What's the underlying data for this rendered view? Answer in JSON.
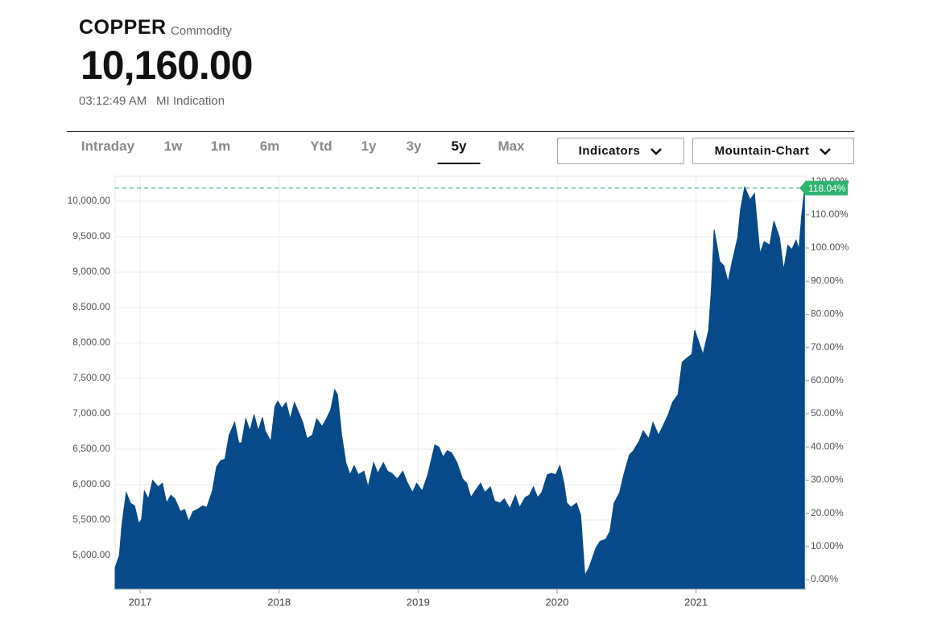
{
  "header": {
    "symbol": "COPPER",
    "asset_type": "Commodity",
    "price": "10,160.00",
    "time": "03:12:49 AM",
    "source": "MI Indication"
  },
  "tabs": [
    "Intraday",
    "1w",
    "1m",
    "6m",
    "Ytd",
    "1y",
    "3y",
    "5y",
    "Max"
  ],
  "active_tab": 7,
  "buttons": [
    "Indicators",
    "Mountain-Chart"
  ],
  "chart_data": {
    "type": "area",
    "x": [
      2016.82,
      2016.85,
      2016.87,
      2016.9,
      2016.93,
      2016.96,
      2016.99,
      2017.01,
      2017.03,
      2017.06,
      2017.09,
      2017.13,
      2017.16,
      2017.19,
      2017.22,
      2017.25,
      2017.29,
      2017.32,
      2017.35,
      2017.38,
      2017.42,
      2017.45,
      2017.48,
      2017.52,
      2017.55,
      2017.58,
      2017.61,
      2017.64,
      2017.68,
      2017.71,
      2017.73,
      2017.76,
      2017.79,
      2017.82,
      2017.85,
      2017.88,
      2017.9,
      2017.94,
      2017.97,
      2017.99,
      2018.02,
      2018.05,
      2018.08,
      2018.11,
      2018.14,
      2018.17,
      2018.2,
      2018.24,
      2018.27,
      2018.31,
      2018.34,
      2018.37,
      2018.4,
      2018.42,
      2018.45,
      2018.48,
      2018.51,
      2018.54,
      2018.57,
      2018.61,
      2018.64,
      2018.68,
      2018.71,
      2018.75,
      2018.78,
      2018.81,
      2018.85,
      2018.89,
      2018.92,
      2018.96,
      2018.99,
      2019.03,
      2019.07,
      2019.09,
      2019.12,
      2019.15,
      2019.18,
      2019.21,
      2019.24,
      2019.28,
      2019.32,
      2019.35,
      2019.38,
      2019.41,
      2019.45,
      2019.48,
      2019.52,
      2019.55,
      2019.59,
      2019.62,
      2019.66,
      2019.7,
      2019.73,
      2019.77,
      2019.8,
      2019.83,
      2019.86,
      2019.89,
      2019.93,
      2019.96,
      2019.99,
      2020.02,
      2020.05,
      2020.07,
      2020.1,
      2020.14,
      2020.17,
      2020.2,
      2020.23,
      2020.25,
      2020.28,
      2020.31,
      2020.35,
      2020.38,
      2020.41,
      2020.45,
      2020.48,
      2020.52,
      2020.55,
      2020.59,
      2020.62,
      2020.66,
      2020.69,
      2020.73,
      2020.76,
      2020.8,
      2020.83,
      2020.87,
      2020.9,
      2020.93,
      2020.97,
      2020.99,
      2021.02,
      2021.05,
      2021.09,
      2021.11,
      2021.13,
      2021.17,
      2021.2,
      2021.23,
      2021.26,
      2021.3,
      2021.32,
      2021.35,
      2021.39,
      2021.42,
      2021.46,
      2021.49,
      2021.53,
      2021.56,
      2021.6,
      2021.63,
      2021.66,
      2021.69,
      2021.72,
      2021.74,
      2021.76,
      2021.78
    ],
    "values": [
      4830,
      5000,
      5450,
      5890,
      5740,
      5700,
      5450,
      5510,
      5910,
      5800,
      6060,
      5970,
      6020,
      5740,
      5850,
      5800,
      5620,
      5650,
      5480,
      5620,
      5660,
      5700,
      5680,
      5910,
      6250,
      6340,
      6360,
      6700,
      6880,
      6590,
      6590,
      6930,
      6760,
      6990,
      6760,
      6950,
      6760,
      6610,
      7100,
      7180,
      7080,
      7160,
      6930,
      7160,
      7020,
      6880,
      6650,
      6700,
      6930,
      6820,
      6930,
      7050,
      7340,
      7270,
      6700,
      6310,
      6140,
      6270,
      6140,
      6190,
      5970,
      6310,
      6160,
      6310,
      6190,
      6160,
      6080,
      6190,
      6040,
      5890,
      6020,
      5910,
      6140,
      6310,
      6560,
      6530,
      6390,
      6480,
      6450,
      6310,
      6080,
      6020,
      5820,
      5910,
      6020,
      5890,
      5970,
      5770,
      5740,
      5800,
      5660,
      5850,
      5680,
      5820,
      5850,
      5970,
      5820,
      5890,
      6140,
      6160,
      6140,
      6270,
      6020,
      5740,
      5680,
      5740,
      5570,
      4720,
      4830,
      4940,
      5110,
      5200,
      5230,
      5340,
      5740,
      5890,
      6140,
      6420,
      6480,
      6610,
      6760,
      6650,
      6880,
      6700,
      6820,
      6990,
      7160,
      7270,
      7730,
      7780,
      7840,
      8180,
      8010,
      7840,
      8180,
      8750,
      9600,
      9150,
      9090,
      8860,
      9150,
      9490,
      9890,
      10200,
      10020,
      10110,
      9260,
      9430,
      9380,
      9720,
      9490,
      9030,
      9380,
      9320,
      9450,
      9320,
      9800,
      10160
    ],
    "color": "#064a8a",
    "xlim": [
      2016.82,
      2021.79
    ],
    "xticks": [
      2017,
      2018,
      2019,
      2020,
      2021
    ],
    "ylim": [
      4523,
      10352
    ],
    "yticks": [
      {
        "value": 5000,
        "label": "5,000.00"
      },
      {
        "value": 5500,
        "label": "5,500.00"
      },
      {
        "value": 6000,
        "label": "6,000.00"
      },
      {
        "value": 6500,
        "label": "6,500.00"
      },
      {
        "value": 7000,
        "label": "7,000.00"
      },
      {
        "value": 7500,
        "label": "7,500.00"
      },
      {
        "value": 8000,
        "label": "8,000.00"
      },
      {
        "value": 8500,
        "label": "8,500.00"
      },
      {
        "value": 9000,
        "label": "9,000.00"
      },
      {
        "value": 9500,
        "label": "9,500.00"
      },
      {
        "value": 10000,
        "label": "10,000.00"
      }
    ],
    "y2lim": [
      -2.9,
      121.6
    ],
    "y2ticks": [
      {
        "value": 0,
        "label": "0.00%"
      },
      {
        "value": 10,
        "label": "10.00%"
      },
      {
        "value": 20,
        "label": "20.00%"
      },
      {
        "value": 30,
        "label": "30.00%"
      },
      {
        "value": 40,
        "label": "40.00%"
      },
      {
        "value": 50,
        "label": "50.00%"
      },
      {
        "value": 60,
        "label": "60.00%"
      },
      {
        "value": 70,
        "label": "70.00%"
      },
      {
        "value": 80,
        "label": "80.00%"
      },
      {
        "value": 90,
        "label": "90.00%"
      },
      {
        "value": 100,
        "label": "100.00%"
      },
      {
        "value": 110,
        "label": "110.00%"
      },
      {
        "value": 120,
        "label": "120.00%"
      }
    ],
    "last_change": {
      "value": 118.04,
      "label": "118.04%"
    },
    "reference_color": "#2db36e",
    "grid": true
  }
}
